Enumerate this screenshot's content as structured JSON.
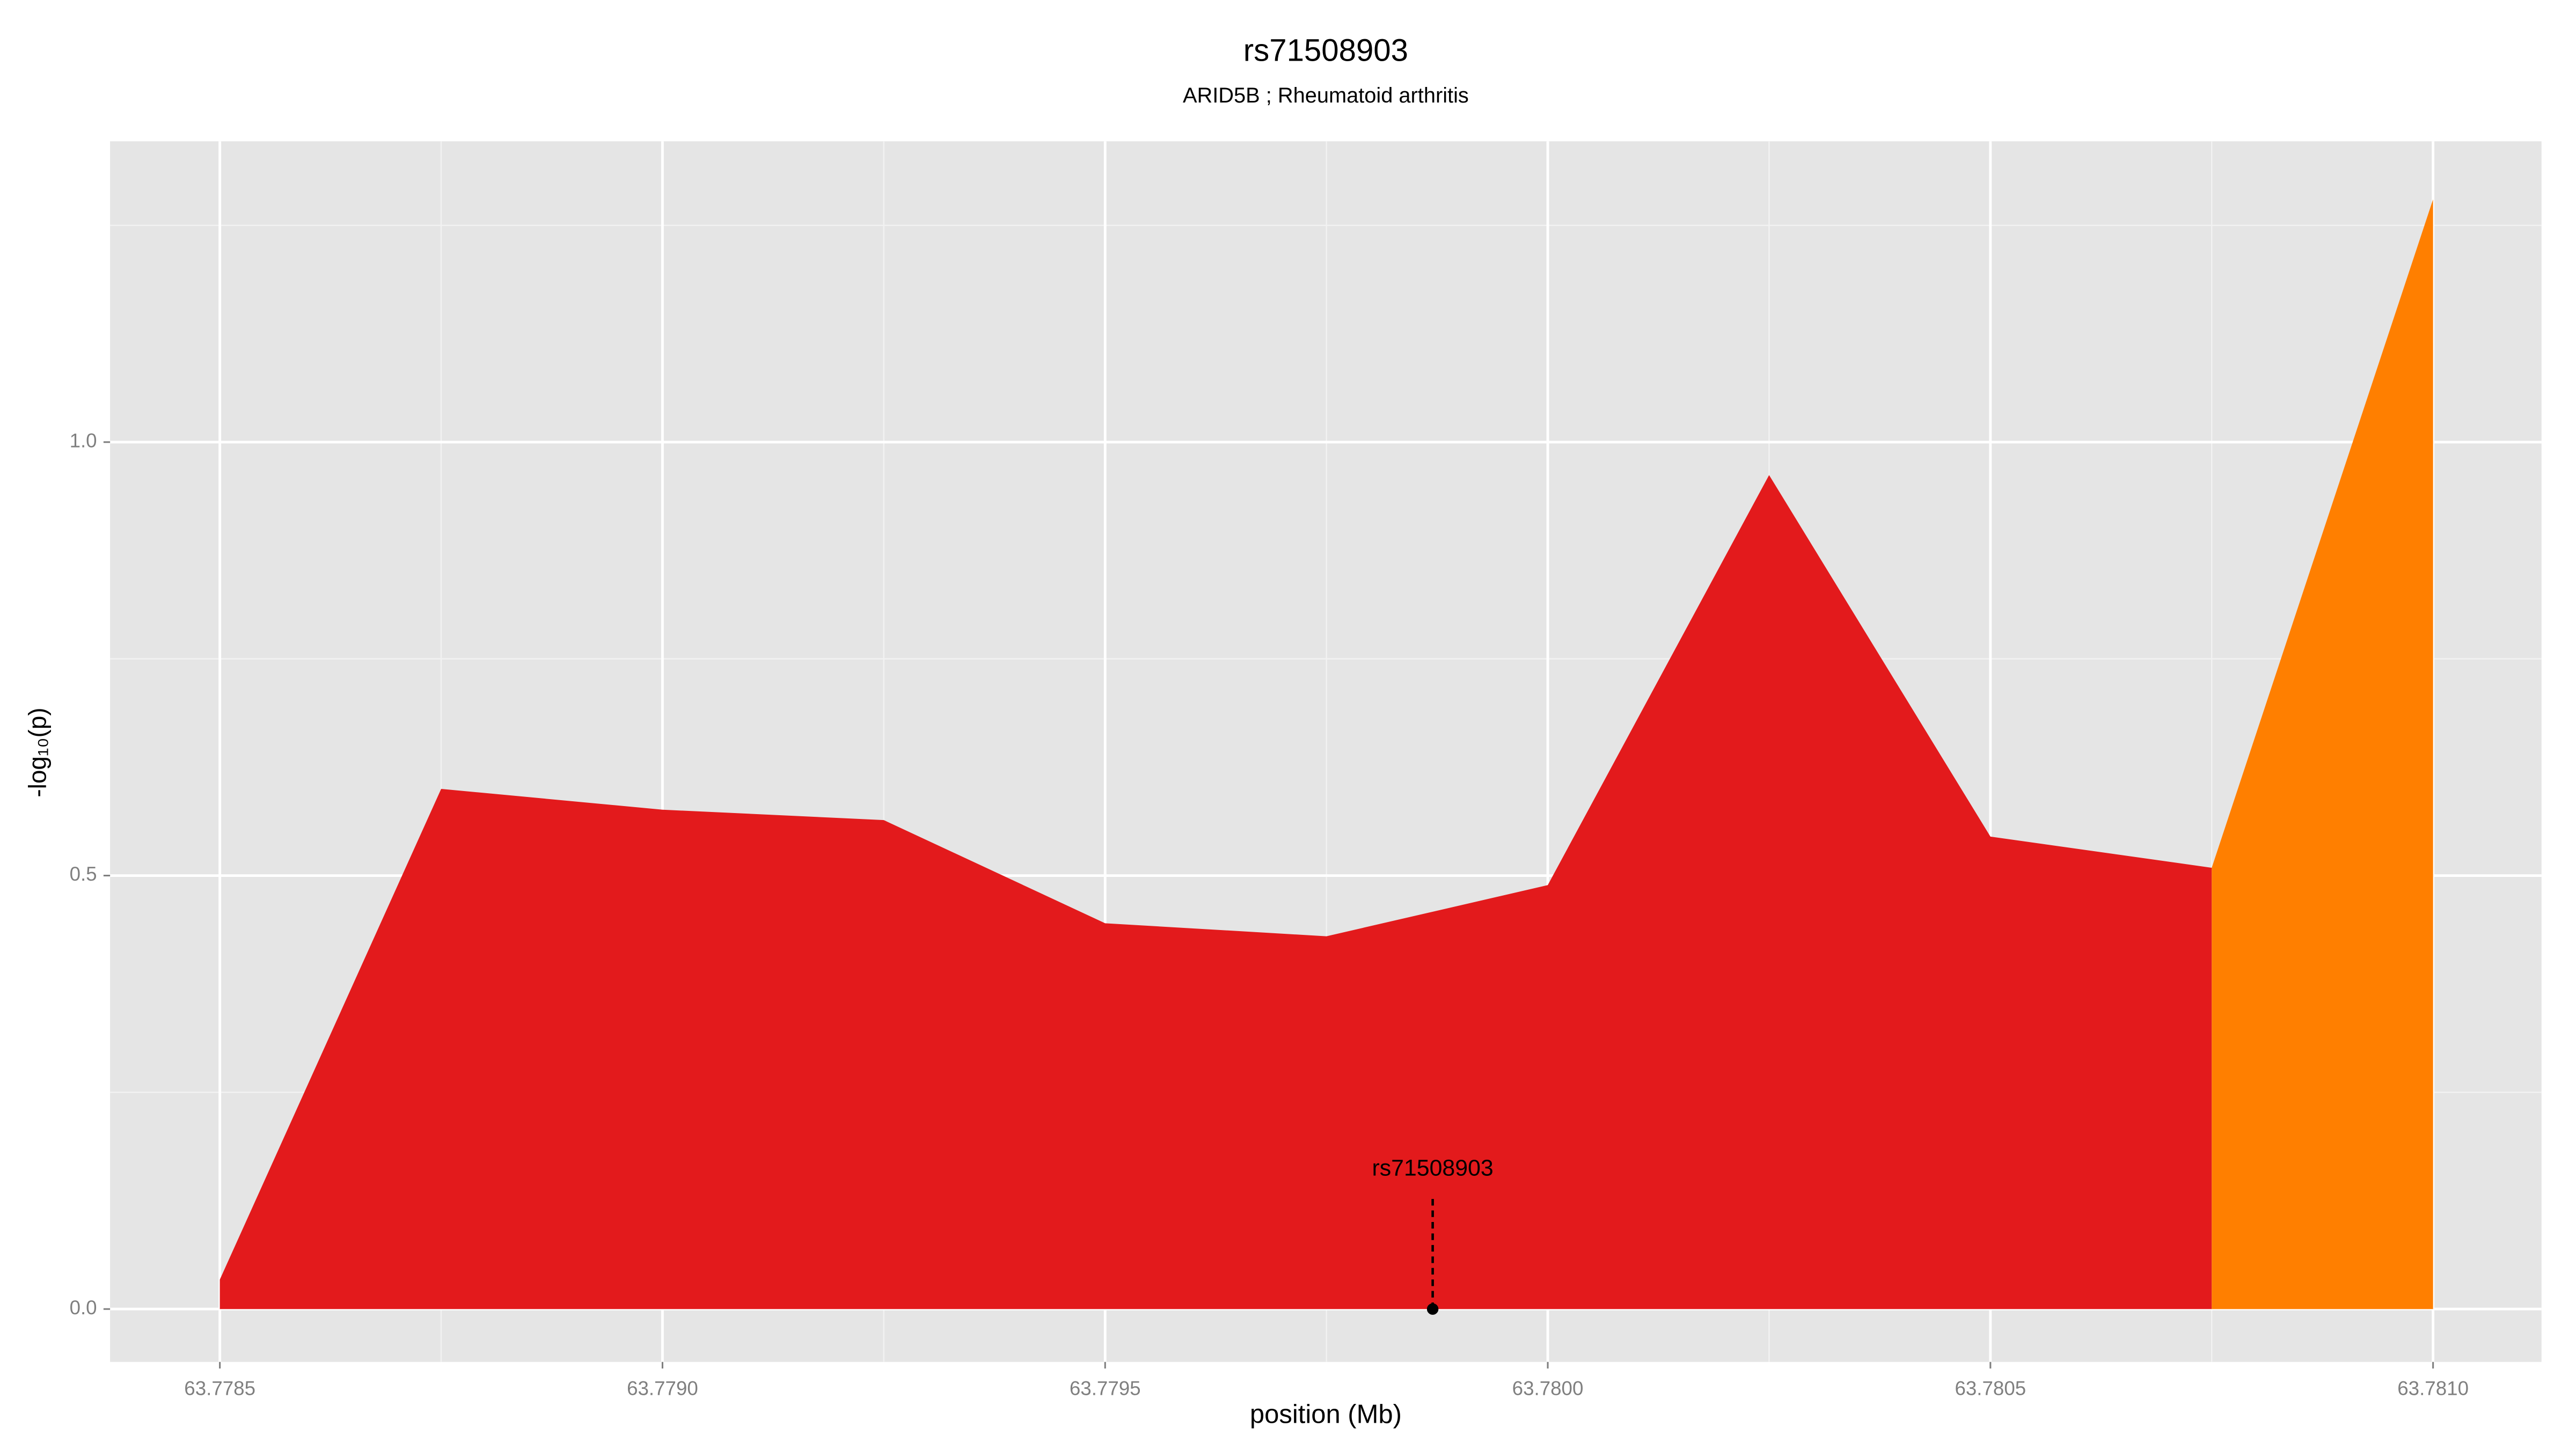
{
  "chart_data": {
    "type": "area",
    "title": "rs71508903",
    "subtitle": "ARID5B ; Rheumatoid arthritis",
    "x_label": "position (Mb)",
    "y_label": "-log₁₀(p)",
    "x": [
      63.7785,
      63.77875,
      63.779,
      63.77925,
      63.7795,
      63.77975,
      63.78,
      63.78025,
      63.7805,
      63.78075,
      63.781
    ],
    "series": [
      {
        "color": "#e31a1c",
        "values": [
          0.034,
          0.6,
          0.576,
          0.564,
          0.445,
          0.43,
          0.489,
          0.962,
          0.545,
          0.509,
          null
        ]
      },
      {
        "color": "#ff7f00",
        "values": [
          null,
          null,
          null,
          null,
          null,
          null,
          null,
          null,
          null,
          0.509,
          1.28
        ]
      }
    ],
    "annotation": {
      "text": "rs71508903",
      "x": 63.77987,
      "y": 0
    },
    "xlim": [
      63.778376,
      63.7811225
    ],
    "ylim": [
      -0.061,
      1.347
    ],
    "xticks": [
      63.7785,
      {
        "value": 63.779,
        "label": "63.7790"
      },
      63.7795,
      {
        "value": 63.78,
        "label": "63.7800"
      },
      63.7805,
      {
        "value": 63.781,
        "label": "63.7810"
      }
    ],
    "yticks": [
      {
        "value": 0,
        "label": "0.0"
      },
      0.5,
      {
        "value": 1,
        "label": "1.0"
      }
    ],
    "x_minor_ticks": [
      63.77875,
      63.77925,
      63.77975,
      63.78025,
      63.78075
    ],
    "y_minor_ticks": [
      0.25,
      0.75,
      1.25
    ],
    "grid": true,
    "panel_color": "#e5e5e5"
  }
}
